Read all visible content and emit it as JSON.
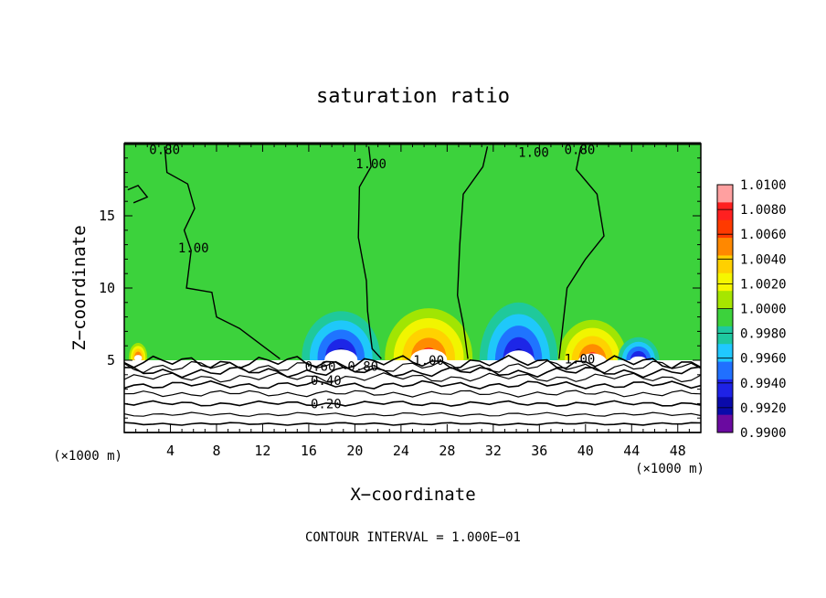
{
  "chart_data": {
    "type": "heatmap",
    "title": "saturation ratio",
    "xlabel": "X−coordinate",
    "ylabel": "Z−coordinate",
    "x_unit": "(×1000 m)",
    "y_unit": "(×1000 m)",
    "xlim": [
      0,
      50
    ],
    "ylim": [
      0,
      20
    ],
    "x_ticks": [
      4,
      8,
      12,
      16,
      20,
      24,
      28,
      32,
      36,
      40,
      44,
      48
    ],
    "y_ticks": [
      5,
      10,
      15
    ],
    "colorbar": {
      "levels": [
        "1.0100",
        "1.0080",
        "1.0060",
        "1.0040",
        "1.0020",
        "1.0000",
        "0.9980",
        "0.9960",
        "0.9940",
        "0.9920",
        "0.9900"
      ],
      "colors": [
        "#ffa0a0",
        "#ff2020",
        "#ff3a00",
        "#ff8800",
        "#ffd000",
        "#f6f600",
        "#a6e600",
        "#3cd23c",
        "#1ec8a0",
        "#20c8ff",
        "#2070ff",
        "#1e22e6",
        "#0a0aaa",
        "#6a0aa0"
      ]
    },
    "contour_labels": [
      {
        "text": "0.80",
        "x": 3.5,
        "z": 19.6
      },
      {
        "text": "1.00",
        "x": 21.4,
        "z": 18.6
      },
      {
        "text": "1.00",
        "x": 35.5,
        "z": 19.4
      },
      {
        "text": "0.80",
        "x": 39.5,
        "z": 19.6
      },
      {
        "text": "1.00",
        "x": 6.0,
        "z": 12.8
      },
      {
        "text": "1.00",
        "x": 26.4,
        "z": 5.0
      },
      {
        "text": "1.00",
        "x": 39.5,
        "z": 5.1
      },
      {
        "text": "0.80",
        "x": 20.7,
        "z": 4.6
      },
      {
        "text": "0.60",
        "x": 17.0,
        "z": 4.6
      },
      {
        "text": "0.40",
        "x": 17.5,
        "z": 3.6
      },
      {
        "text": "0.20",
        "x": 17.5,
        "z": 2.0
      }
    ],
    "hot_spots": [
      {
        "x": 26.4,
        "z": 5.2,
        "rx": 3.8,
        "rz": 3.4,
        "sign": "max"
      },
      {
        "x": 40.6,
        "z": 5.0,
        "rx": 3.0,
        "rz": 2.8,
        "sign": "max"
      },
      {
        "x": 1.2,
        "z": 5.2,
        "rx": 0.8,
        "rz": 1.0,
        "sign": "max"
      },
      {
        "x": 34.2,
        "z": 5.0,
        "rx": 3.4,
        "rz": 4.0,
        "sign": "min"
      },
      {
        "x": 18.8,
        "z": 5.2,
        "rx": 3.4,
        "rz": 3.2,
        "sign": "min"
      },
      {
        "x": 44.6,
        "z": 5.0,
        "rx": 1.8,
        "rz": 1.6,
        "sign": "min"
      }
    ],
    "footer": "CONTOUR INTERVAL = 1.000E−01"
  }
}
